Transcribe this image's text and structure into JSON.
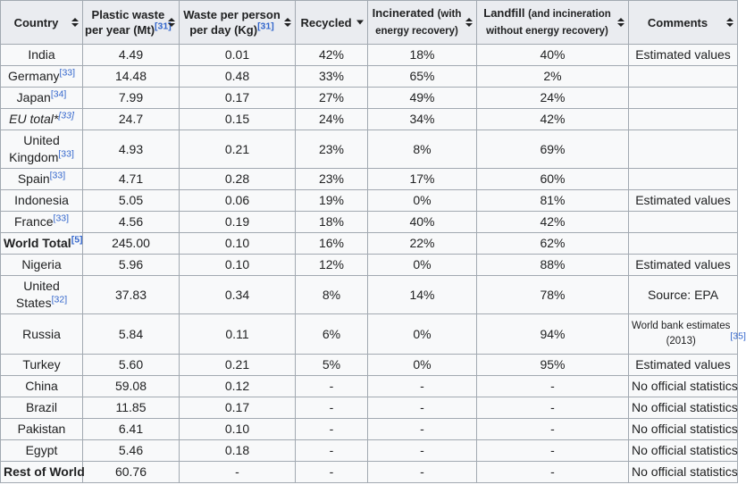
{
  "colors": {
    "header_bg": "#eaecf0",
    "body_bg": "#f8f9fa",
    "border": "#a2a9b1",
    "link": "#3366cc",
    "text": "#202122",
    "sort_icon": "#202122"
  },
  "chart_data": {
    "type": "table",
    "legend_position": "none",
    "columns": [
      {
        "id": "country",
        "title": "Country",
        "sort": "both"
      },
      {
        "id": "plastic-waste-per-year",
        "title": "Plastic waste",
        "line2": "per year (Mt)",
        "line2_small": false,
        "ref": "[31]",
        "sort": "both"
      },
      {
        "id": "waste-per-person-per-day",
        "title": "Waste per person",
        "line2": "per day (Kg)",
        "line2_small": false,
        "ref": "[31]",
        "sort": "both"
      },
      {
        "id": "recycled",
        "title": "Recycled",
        "sort": "desc"
      },
      {
        "id": "incinerated",
        "title": "Incinerated",
        "small_inline": "(with",
        "line2": "energy recovery)",
        "line2_small": true,
        "sort": "both"
      },
      {
        "id": "landfill",
        "title": "Landfill",
        "small_inline": "(and incineration",
        "line2": "without energy recovery)",
        "line2_small": true,
        "sort": "both"
      },
      {
        "id": "comments",
        "title": "Comments",
        "sort": "both"
      }
    ],
    "rows": [
      {
        "country": "India",
        "country_ref": "",
        "country_style": "",
        "per_year": "4.49",
        "per_day": "0.01",
        "recycled": "42%",
        "incinerated": "18%",
        "landfill": "40%",
        "comment": "Estimated values",
        "comment_ref": "",
        "comment_small": false
      },
      {
        "country": "Germany",
        "country_ref": "[33]",
        "country_style": "",
        "per_year": "14.48",
        "per_day": "0.48",
        "recycled": "33%",
        "incinerated": "65%",
        "landfill": "2%",
        "comment": "",
        "comment_ref": "",
        "comment_small": false
      },
      {
        "country": "Japan",
        "country_ref": "[34]",
        "country_style": "",
        "per_year": "7.99",
        "per_day": "0.17",
        "recycled": "27%",
        "incinerated": "49%",
        "landfill": "24%",
        "comment": "",
        "comment_ref": "",
        "comment_small": false
      },
      {
        "country": "EU total*",
        "country_ref": "[33]",
        "country_style": "italic",
        "per_year": "24.7",
        "per_day": "0.15",
        "recycled": "24%",
        "incinerated": "34%",
        "landfill": "42%",
        "comment": "",
        "comment_ref": "",
        "comment_small": false
      },
      {
        "country": "United\nKingdom",
        "country_ref": "[33]",
        "country_style": "",
        "per_year": "4.93",
        "per_day": "0.21",
        "recycled": "23%",
        "incinerated": "8%",
        "landfill": "69%",
        "comment": "",
        "comment_ref": "",
        "comment_small": false
      },
      {
        "country": "Spain",
        "country_ref": "[33]",
        "country_style": "",
        "per_year": "4.71",
        "per_day": "0.28",
        "recycled": "23%",
        "incinerated": "17%",
        "landfill": "60%",
        "comment": "",
        "comment_ref": "",
        "comment_small": false
      },
      {
        "country": "Indonesia",
        "country_ref": "",
        "country_style": "",
        "per_year": "5.05",
        "per_day": "0.06",
        "recycled": "19%",
        "incinerated": "0%",
        "landfill": "81%",
        "comment": "Estimated values",
        "comment_ref": "",
        "comment_small": false
      },
      {
        "country": "France",
        "country_ref": "[33]",
        "country_style": "",
        "per_year": "4.56",
        "per_day": "0.19",
        "recycled": "18%",
        "incinerated": "40%",
        "landfill": "42%",
        "comment": "",
        "comment_ref": "",
        "comment_small": false
      },
      {
        "country": "World Total",
        "country_ref": "[5]",
        "country_style": "bold",
        "per_year": "245.00",
        "per_day": "0.10",
        "recycled": "16%",
        "incinerated": "22%",
        "landfill": "62%",
        "comment": "",
        "comment_ref": "",
        "comment_small": false
      },
      {
        "country": "Nigeria",
        "country_ref": "",
        "country_style": "",
        "per_year": "5.96",
        "per_day": "0.10",
        "recycled": "12%",
        "incinerated": "0%",
        "landfill": "88%",
        "comment": "Estimated values",
        "comment_ref": "",
        "comment_small": false
      },
      {
        "country": "United\nStates",
        "country_ref": "[32]",
        "country_style": "",
        "per_year": "37.83",
        "per_day": "0.34",
        "recycled": "8%",
        "incinerated": "14%",
        "landfill": "78%",
        "comment": "Source: EPA",
        "comment_ref": "",
        "comment_small": false
      },
      {
        "country": "Russia",
        "country_ref": "",
        "country_style": "",
        "per_year": "5.84",
        "per_day": "0.11",
        "recycled": "6%",
        "incinerated": "0%",
        "landfill": "94%",
        "comment": "World bank estimates\n(2013)",
        "comment_ref": "[35]",
        "comment_small": true
      },
      {
        "country": "Turkey",
        "country_ref": "",
        "country_style": "",
        "per_year": "5.60",
        "per_day": "0.21",
        "recycled": "5%",
        "incinerated": "0%",
        "landfill": "95%",
        "comment": "Estimated values",
        "comment_ref": "",
        "comment_small": false
      },
      {
        "country": "China",
        "country_ref": "",
        "country_style": "",
        "per_year": "59.08",
        "per_day": "0.12",
        "recycled": "-",
        "incinerated": "-",
        "landfill": "-",
        "comment": "No official statistics",
        "comment_ref": "",
        "comment_small": false
      },
      {
        "country": "Brazil",
        "country_ref": "",
        "country_style": "",
        "per_year": "11.85",
        "per_day": "0.17",
        "recycled": "-",
        "incinerated": "-",
        "landfill": "-",
        "comment": "No official statistics",
        "comment_ref": "",
        "comment_small": false
      },
      {
        "country": "Pakistan",
        "country_ref": "",
        "country_style": "",
        "per_year": "6.41",
        "per_day": "0.10",
        "recycled": "-",
        "incinerated": "-",
        "landfill": "-",
        "comment": "No official statistics",
        "comment_ref": "",
        "comment_small": false
      },
      {
        "country": "Egypt",
        "country_ref": "",
        "country_style": "",
        "per_year": "5.46",
        "per_day": "0.18",
        "recycled": "-",
        "incinerated": "-",
        "landfill": "-",
        "comment": "No official statistics",
        "comment_ref": "",
        "comment_small": false
      },
      {
        "country": "Rest of World",
        "country_ref": "",
        "country_style": "bold",
        "per_year": "60.76",
        "per_day": "-",
        "recycled": "-",
        "incinerated": "-",
        "landfill": "-",
        "comment": "No official statistics",
        "comment_ref": "",
        "comment_small": false
      }
    ]
  }
}
